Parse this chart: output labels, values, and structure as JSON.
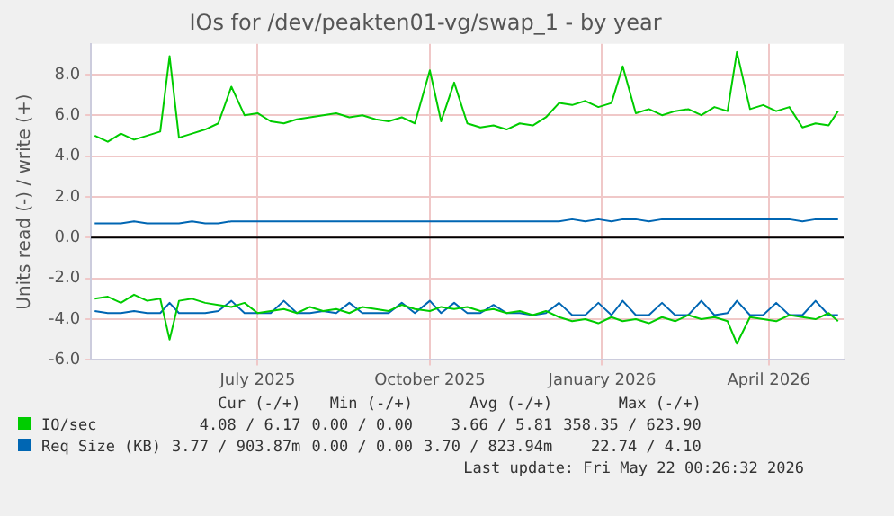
{
  "chart_data": {
    "type": "line",
    "title": "IOs for /dev/peakten01-vg/swap_1 - by year",
    "ylabel": "Units read (-) / write (+)",
    "x": [
      "2025-04-20",
      "2025-04-27",
      "2025-05-04",
      "2025-05-11",
      "2025-05-18",
      "2025-05-25",
      "2025-05-30",
      "2025-06-04",
      "2025-06-11",
      "2025-06-18",
      "2025-06-25",
      "2025-07-02",
      "2025-07-09",
      "2025-07-16",
      "2025-07-23",
      "2025-07-30",
      "2025-08-06",
      "2025-08-13",
      "2025-08-20",
      "2025-08-27",
      "2025-09-03",
      "2025-09-10",
      "2025-09-17",
      "2025-09-24",
      "2025-10-01",
      "2025-10-08",
      "2025-10-16",
      "2025-10-22",
      "2025-10-29",
      "2025-11-05",
      "2025-11-12",
      "2025-11-19",
      "2025-11-26",
      "2025-12-03",
      "2025-12-10",
      "2025-12-17",
      "2025-12-24",
      "2025-12-31",
      "2026-01-07",
      "2026-01-14",
      "2026-01-21",
      "2026-01-27",
      "2026-02-03",
      "2026-02-10",
      "2026-02-17",
      "2026-02-24",
      "2026-03-03",
      "2026-03-10",
      "2026-03-17",
      "2026-03-24",
      "2026-03-29",
      "2026-04-05",
      "2026-04-12",
      "2026-04-19",
      "2026-04-26",
      "2026-05-03",
      "2026-05-10",
      "2026-05-17",
      "2026-05-22"
    ],
    "series": [
      {
        "name": "IO/sec",
        "color": "#00cc00",
        "values": [
          5.0,
          4.7,
          5.1,
          4.8,
          5.0,
          5.2,
          8.9,
          4.9,
          5.1,
          5.3,
          5.6,
          7.4,
          6.0,
          6.1,
          5.7,
          5.6,
          5.8,
          5.9,
          6.0,
          6.1,
          5.9,
          6.0,
          5.8,
          5.7,
          5.9,
          5.6,
          8.2,
          5.7,
          7.6,
          5.6,
          5.4,
          5.5,
          5.3,
          5.6,
          5.5,
          5.9,
          6.6,
          6.5,
          6.7,
          6.4,
          6.6,
          8.4,
          6.1,
          6.3,
          6.0,
          6.2,
          6.3,
          6.0,
          6.4,
          6.2,
          9.1,
          6.3,
          6.5,
          6.2,
          6.4,
          5.4,
          5.6,
          5.5,
          6.2
        ]
      },
      {
        "color": "#00cc00",
        "values": [
          -3.0,
          -2.9,
          -3.2,
          -2.8,
          -3.1,
          -3.0,
          -5.0,
          -3.1,
          -3.0,
          -3.2,
          -3.3,
          -3.4,
          -3.2,
          -3.7,
          -3.6,
          -3.5,
          -3.7,
          -3.4,
          -3.6,
          -3.5,
          -3.7,
          -3.4,
          -3.5,
          -3.6,
          -3.3,
          -3.5,
          -3.6,
          -3.4,
          -3.5,
          -3.4,
          -3.6,
          -3.5,
          -3.7,
          -3.6,
          -3.8,
          -3.6,
          -3.9,
          -4.1,
          -4.0,
          -4.2,
          -3.9,
          -4.1,
          -4.0,
          -4.2,
          -3.9,
          -4.1,
          -3.8,
          -4.0,
          -3.9,
          -4.1,
          -5.2,
          -3.9,
          -4.0,
          -4.1,
          -3.8,
          -3.9,
          -4.0,
          -3.7,
          -4.1
        ]
      },
      {
        "name": "Req Size (KB)",
        "color": "#0066b3",
        "values": [
          0.7,
          0.7,
          0.7,
          0.8,
          0.7,
          0.7,
          0.7,
          0.7,
          0.8,
          0.7,
          0.7,
          0.8,
          0.8,
          0.8,
          0.8,
          0.8,
          0.8,
          0.8,
          0.8,
          0.8,
          0.8,
          0.8,
          0.8,
          0.8,
          0.8,
          0.8,
          0.8,
          0.8,
          0.8,
          0.8,
          0.8,
          0.8,
          0.8,
          0.8,
          0.8,
          0.8,
          0.8,
          0.9,
          0.8,
          0.9,
          0.8,
          0.9,
          0.9,
          0.8,
          0.9,
          0.9,
          0.9,
          0.9,
          0.9,
          0.9,
          0.9,
          0.9,
          0.9,
          0.9,
          0.9,
          0.8,
          0.9,
          0.9,
          0.9
        ]
      },
      {
        "color": "#0066b3",
        "values": [
          -3.6,
          -3.7,
          -3.7,
          -3.6,
          -3.7,
          -3.7,
          -3.2,
          -3.7,
          -3.7,
          -3.7,
          -3.6,
          -3.1,
          -3.7,
          -3.7,
          -3.7,
          -3.1,
          -3.7,
          -3.7,
          -3.6,
          -3.7,
          -3.2,
          -3.7,
          -3.7,
          -3.7,
          -3.2,
          -3.7,
          -3.1,
          -3.7,
          -3.2,
          -3.7,
          -3.7,
          -3.3,
          -3.7,
          -3.7,
          -3.8,
          -3.7,
          -3.2,
          -3.8,
          -3.8,
          -3.2,
          -3.8,
          -3.1,
          -3.8,
          -3.8,
          -3.2,
          -3.8,
          -3.8,
          -3.1,
          -3.8,
          -3.7,
          -3.1,
          -3.8,
          -3.8,
          -3.2,
          -3.8,
          -3.8,
          -3.1,
          -3.8,
          -3.8
        ]
      }
    ],
    "xlim": [
      "2025-04-18",
      "2026-05-25"
    ],
    "xticks": [
      {
        "value": "2025-07-16",
        "label": "July 2025"
      },
      {
        "value": "2025-10-16",
        "label": "October 2025"
      },
      {
        "value": "2026-01-16",
        "label": "January 2026"
      },
      {
        "value": "2026-04-15",
        "label": "April 2026"
      }
    ],
    "ylim": [
      -6,
      9.5
    ],
    "yticks": [
      {
        "value": -6,
        "label": "-6.0"
      },
      {
        "value": -4,
        "label": "-4.0"
      },
      {
        "value": -2,
        "label": "-2.0"
      },
      {
        "value": 0,
        "label": "0.0"
      },
      {
        "value": 2,
        "label": "2.0"
      },
      {
        "value": 4,
        "label": "4.0"
      },
      {
        "value": 6,
        "label": "6.0"
      },
      {
        "value": 8,
        "label": "8.0"
      }
    ],
    "ref_lines": [
      {
        "axis": "y",
        "value": 0,
        "color": "#000000"
      }
    ],
    "grid": true,
    "marker": "none",
    "legend": "bottom left",
    "annotations": [
      "Cur (-/+)",
      "Min (-/+)",
      "Avg (-/+)",
      "Max (-/+)",
      "4.08 / 6.17",
      "0.00 / 0.00",
      "3.66 / 5.81",
      "358.35 / 623.90",
      "3.77 / 903.87m",
      "0.00 / 0.00",
      "3.70 / 823.94m",
      "22.74 / 4.10",
      "Last update: Fri May 22 00:26:32 2026"
    ]
  }
}
